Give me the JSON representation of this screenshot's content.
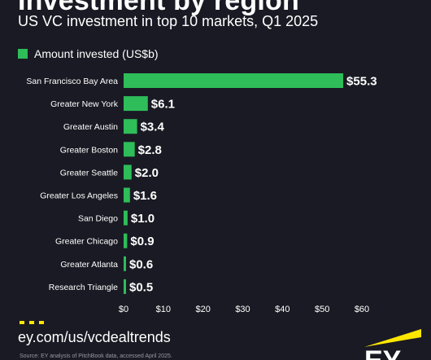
{
  "header": {
    "title": "Investment by region",
    "subtitle": "US VC investment in top 10 markets, Q1 2025"
  },
  "legend": {
    "label": "Amount invested (US$b)",
    "color": "#2ebd59"
  },
  "chart_data": {
    "type": "bar",
    "orientation": "horizontal",
    "categories": [
      "San Francisco Bay Area",
      "Greater New York",
      "Greater Austin",
      "Greater Boston",
      "Greater Seattle",
      "Greater Los Angeles",
      "San Diego",
      "Greater Chicago",
      "Greater Atlanta",
      "Research Triangle"
    ],
    "series": [
      {
        "name": "Amount invested (US$b)",
        "values": [
          55.3,
          6.1,
          3.4,
          2.8,
          2.0,
          1.6,
          1.0,
          0.9,
          0.6,
          0.5
        ]
      }
    ],
    "value_labels": [
      "$55.3",
      "$6.1",
      "$3.4",
      "$2.8",
      "$2.0",
      "$1.6",
      "$1.0",
      "$0.9",
      "$0.6",
      "$0.5"
    ],
    "xticks": [
      "$0",
      "$10",
      "$20",
      "$30",
      "$40",
      "$50",
      "$60"
    ],
    "xtick_values": [
      0,
      10,
      20,
      30,
      40,
      50,
      60
    ],
    "xlim": [
      0,
      60
    ],
    "grid": false,
    "legend_position": "top-left",
    "bar_color": "#2ebd59"
  },
  "footer": {
    "link": "ey.com/us/vcdealtrends",
    "source": "Source: EY analysis of PitchBook data, accessed April 2025."
  },
  "brand": {
    "logo_text": "EY",
    "accent": "#ffe600"
  }
}
